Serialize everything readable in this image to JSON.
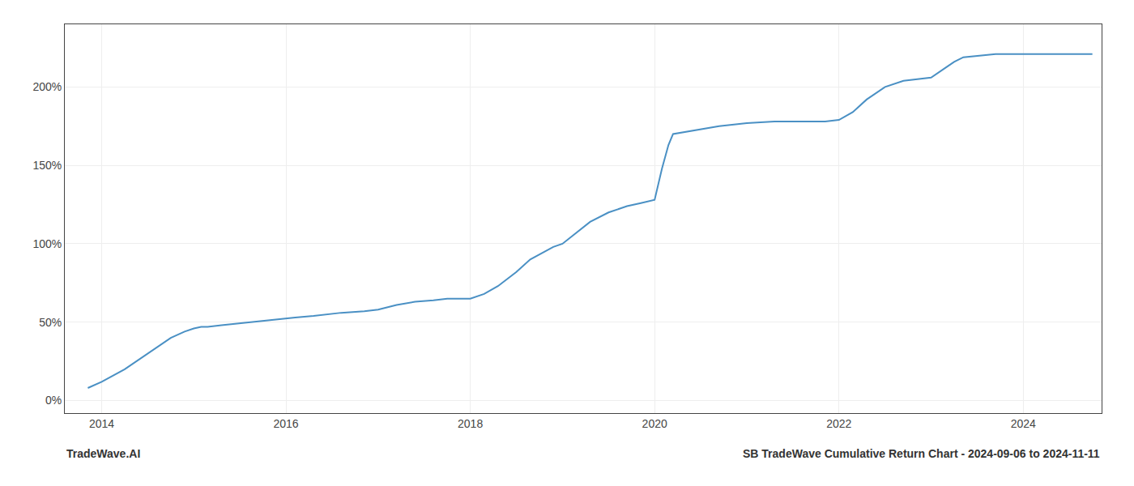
{
  "chart_data": {
    "type": "line",
    "color": "#4a90c4",
    "grid": true,
    "xlim": [
      2013.6,
      2024.85
    ],
    "xticks": [
      2014,
      2016,
      2018,
      2020,
      2022,
      2024
    ],
    "ylim": [
      -8,
      240
    ],
    "yticks": [
      {
        "value": 0,
        "label": "0%"
      },
      {
        "value": 50,
        "label": "50%"
      },
      {
        "value": 100,
        "label": "100%"
      },
      {
        "value": 150,
        "label": "150%"
      },
      {
        "value": 200,
        "label": "200%"
      }
    ],
    "x": [
      2013.85,
      2014.0,
      2014.25,
      2014.5,
      2014.75,
      2014.9,
      2015.0,
      2015.08,
      2015.15,
      2015.3,
      2015.6,
      2015.9,
      2016.1,
      2016.3,
      2016.6,
      2016.85,
      2017.0,
      2017.2,
      2017.4,
      2017.6,
      2017.75,
      2018.0,
      2018.15,
      2018.3,
      2018.5,
      2018.65,
      2018.8,
      2018.9,
      2019.0,
      2019.15,
      2019.3,
      2019.5,
      2019.7,
      2019.85,
      2020.0,
      2020.08,
      2020.15,
      2020.2,
      2020.4,
      2020.7,
      2021.0,
      2021.3,
      2021.6,
      2021.85,
      2022.0,
      2022.15,
      2022.3,
      2022.5,
      2022.7,
      2022.85,
      2023.0,
      2023.15,
      2023.25,
      2023.35,
      2023.5,
      2023.7,
      2023.85,
      2024.0,
      2024.3,
      2024.6,
      2024.75
    ],
    "values": [
      8,
      12,
      20,
      30,
      40,
      44,
      46,
      47,
      47,
      48,
      50,
      52,
      53,
      54,
      56,
      57,
      58,
      61,
      63,
      64,
      65,
      65,
      68,
      73,
      82,
      90,
      95,
      98,
      100,
      107,
      114,
      120,
      124,
      126,
      128,
      148,
      163,
      170,
      172,
      175,
      177,
      178,
      178,
      178,
      179,
      184,
      192,
      200,
      204,
      205,
      206,
      212,
      216,
      219,
      220,
      221,
      221,
      221,
      221,
      221,
      221
    ],
    "annotations": [
      "TradeWave.AI",
      "SB TradeWave Cumulative Return Chart - 2024-09-06 to 2024-11-11"
    ]
  }
}
